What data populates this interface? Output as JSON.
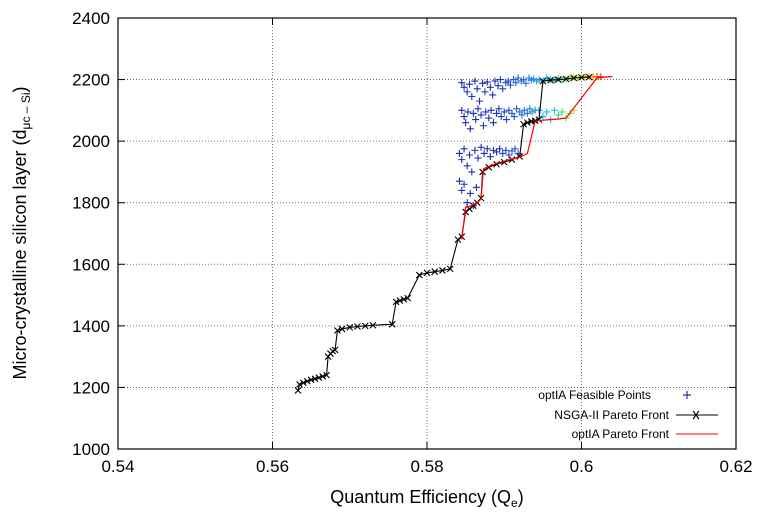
{
  "chart_data": {
    "type": "scatter",
    "xlabel": "Quantum Efficiency (Q",
    "xlabel_sub": "e",
    "ylabel": "Micro-crystalline silicon layer (d",
    "ylabel_sub": "μc – Si",
    "xlim": [
      0.54,
      0.62
    ],
    "ylim": [
      1000,
      2400
    ],
    "xticks": [
      0.54,
      0.56,
      0.58,
      0.6,
      0.62
    ],
    "xtick_labels": [
      "0.54",
      "0.56",
      "0.58",
      "0.6",
      "0.62"
    ],
    "yticks": [
      1000,
      1200,
      1400,
      1600,
      1800,
      2000,
      2200,
      2400
    ],
    "ytick_labels": [
      "1000",
      "1200",
      "1400",
      "1600",
      "1800",
      "2000",
      "2200",
      "2400"
    ],
    "grid": true,
    "legend_position": "bottom-right",
    "colors": {
      "feasible": "#1f2fb4",
      "nsga": "#000000",
      "optia": "#ff0000"
    },
    "series": [
      {
        "name": "optIA Feasible Points",
        "marker": "+",
        "points": [
          [
            0.5845,
            2190
          ],
          [
            0.5848,
            2175
          ],
          [
            0.5852,
            2160
          ],
          [
            0.5855,
            2185
          ],
          [
            0.5858,
            2145
          ],
          [
            0.5862,
            2195
          ],
          [
            0.5865,
            2170
          ],
          [
            0.5868,
            2130
          ],
          [
            0.5872,
            2188
          ],
          [
            0.5875,
            2160
          ],
          [
            0.5878,
            2192
          ],
          [
            0.5882,
            2175
          ],
          [
            0.5885,
            2150
          ],
          [
            0.5888,
            2195
          ],
          [
            0.5892,
            2180
          ],
          [
            0.5895,
            2200
          ],
          [
            0.5898,
            2170
          ],
          [
            0.5902,
            2190
          ],
          [
            0.5905,
            2195
          ],
          [
            0.5908,
            2182
          ],
          [
            0.5912,
            2200
          ],
          [
            0.5915,
            2190
          ],
          [
            0.5918,
            2205
          ],
          [
            0.5922,
            2195
          ],
          [
            0.5925,
            2200
          ],
          [
            0.5928,
            2188
          ],
          [
            0.5932,
            2205
          ],
          [
            0.5935,
            2198
          ],
          [
            0.5938,
            2202
          ],
          [
            0.5942,
            2195
          ],
          [
            0.5845,
            2100
          ],
          [
            0.5848,
            2080
          ],
          [
            0.585,
            2060
          ],
          [
            0.5853,
            2095
          ],
          [
            0.5856,
            2040
          ],
          [
            0.586,
            2090
          ],
          [
            0.5863,
            2070
          ],
          [
            0.5866,
            2105
          ],
          [
            0.587,
            2085
          ],
          [
            0.5873,
            2050
          ],
          [
            0.5876,
            2095
          ],
          [
            0.588,
            2075
          ],
          [
            0.5883,
            2100
          ],
          [
            0.5886,
            2060
          ],
          [
            0.589,
            2090
          ],
          [
            0.5893,
            2105
          ],
          [
            0.5896,
            2080
          ],
          [
            0.59,
            2095
          ],
          [
            0.5903,
            2070
          ],
          [
            0.5906,
            2100
          ],
          [
            0.591,
            2090
          ],
          [
            0.5913,
            2080
          ],
          [
            0.5916,
            2105
          ],
          [
            0.592,
            2095
          ],
          [
            0.5923,
            2085
          ],
          [
            0.5926,
            2100
          ],
          [
            0.593,
            2090
          ],
          [
            0.5933,
            2105
          ],
          [
            0.5936,
            2095
          ],
          [
            0.594,
            2100
          ],
          [
            0.5842,
            1960
          ],
          [
            0.5845,
            1940
          ],
          [
            0.5848,
            1975
          ],
          [
            0.5852,
            1920
          ],
          [
            0.5855,
            1955
          ],
          [
            0.5858,
            1900
          ],
          [
            0.5862,
            1970
          ],
          [
            0.5866,
            1945
          ],
          [
            0.587,
            1980
          ],
          [
            0.5874,
            1960
          ],
          [
            0.5878,
            1975
          ],
          [
            0.5882,
            1950
          ],
          [
            0.5886,
            1970
          ],
          [
            0.589,
            1965
          ],
          [
            0.5894,
            1975
          ],
          [
            0.5898,
            1960
          ],
          [
            0.5902,
            1970
          ],
          [
            0.5906,
            1955
          ],
          [
            0.591,
            1968
          ],
          [
            0.5914,
            1975
          ],
          [
            0.5918,
            1960
          ],
          [
            0.5842,
            1870
          ],
          [
            0.5845,
            1840
          ],
          [
            0.5848,
            1860
          ],
          [
            0.5852,
            1800
          ],
          [
            0.5856,
            1830
          ],
          [
            0.586,
            1790
          ],
          [
            0.5864,
            1850
          ],
          [
            0.5945,
            2200
          ],
          [
            0.595,
            2195
          ],
          [
            0.5955,
            2205
          ],
          [
            0.596,
            2200
          ],
          [
            0.5965,
            2198
          ],
          [
            0.597,
            2205
          ],
          [
            0.5975,
            2200
          ],
          [
            0.598,
            2202
          ],
          [
            0.5985,
            2205
          ],
          [
            0.599,
            2208
          ],
          [
            0.5995,
            2205
          ],
          [
            0.6,
            2210
          ],
          [
            0.6005,
            2208
          ],
          [
            0.601,
            2210
          ],
          [
            0.6015,
            2208
          ],
          [
            0.602,
            2210
          ],
          [
            0.6025,
            2209
          ],
          [
            0.5945,
            2100
          ],
          [
            0.595,
            2080
          ],
          [
            0.5955,
            2095
          ],
          [
            0.596,
            2070
          ],
          [
            0.5965,
            2100
          ],
          [
            0.597,
            2085
          ],
          [
            0.5975,
            2095
          ],
          [
            0.598,
            2075
          ],
          [
            0.5985,
            2090
          ],
          [
            0.599,
            2100
          ]
        ]
      },
      {
        "name": "NSGA-II Pareto Front",
        "marker": "x",
        "points": [
          [
            0.5633,
            1190
          ],
          [
            0.5635,
            1210
          ],
          [
            0.564,
            1215
          ],
          [
            0.5645,
            1220
          ],
          [
            0.565,
            1225
          ],
          [
            0.5655,
            1228
          ],
          [
            0.566,
            1232
          ],
          [
            0.5665,
            1236
          ],
          [
            0.567,
            1240
          ],
          [
            0.5672,
            1300
          ],
          [
            0.5675,
            1310
          ],
          [
            0.5678,
            1318
          ],
          [
            0.5681,
            1322
          ],
          [
            0.5684,
            1385
          ],
          [
            0.569,
            1390
          ],
          [
            0.57,
            1395
          ],
          [
            0.571,
            1398
          ],
          [
            0.572,
            1400
          ],
          [
            0.573,
            1402
          ],
          [
            0.5755,
            1405
          ],
          [
            0.576,
            1478
          ],
          [
            0.5765,
            1482
          ],
          [
            0.577,
            1486
          ],
          [
            0.5775,
            1490
          ],
          [
            0.579,
            1565
          ],
          [
            0.58,
            1572
          ],
          [
            0.581,
            1576
          ],
          [
            0.582,
            1580
          ],
          [
            0.583,
            1585
          ],
          [
            0.584,
            1680
          ],
          [
            0.5845,
            1690
          ],
          [
            0.585,
            1770
          ],
          [
            0.5855,
            1780
          ],
          [
            0.586,
            1790
          ],
          [
            0.5865,
            1800
          ],
          [
            0.587,
            1815
          ],
          [
            0.5872,
            1900
          ],
          [
            0.588,
            1915
          ],
          [
            0.589,
            1925
          ],
          [
            0.59,
            1932
          ],
          [
            0.591,
            1940
          ],
          [
            0.592,
            1950
          ],
          [
            0.5925,
            2055
          ],
          [
            0.593,
            2060
          ],
          [
            0.5935,
            2064
          ],
          [
            0.594,
            2066
          ],
          [
            0.5945,
            2070
          ],
          [
            0.595,
            2195
          ],
          [
            0.596,
            2198
          ],
          [
            0.597,
            2200
          ],
          [
            0.598,
            2202
          ],
          [
            0.599,
            2205
          ],
          [
            0.6,
            2207
          ],
          [
            0.601,
            2208
          ]
        ]
      },
      {
        "name": "optIA Pareto Front",
        "marker": "line",
        "points": [
          [
            0.5845,
            1680
          ],
          [
            0.585,
            1785
          ],
          [
            0.5858,
            1790
          ],
          [
            0.5865,
            1800
          ],
          [
            0.587,
            1812
          ],
          [
            0.5873,
            1910
          ],
          [
            0.588,
            1918
          ],
          [
            0.589,
            1928
          ],
          [
            0.59,
            1935
          ],
          [
            0.591,
            1942
          ],
          [
            0.592,
            1948
          ],
          [
            0.593,
            1960
          ],
          [
            0.594,
            2065
          ],
          [
            0.595,
            2068
          ],
          [
            0.596,
            2070
          ],
          [
            0.597,
            2072
          ],
          [
            0.598,
            2075
          ],
          [
            0.602,
            2205
          ],
          [
            0.603,
            2208
          ],
          [
            0.604,
            2210
          ]
        ]
      }
    ]
  }
}
